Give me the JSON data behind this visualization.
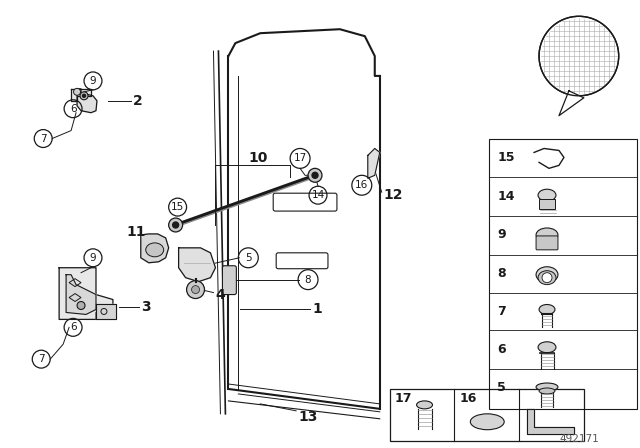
{
  "bg_color": "#ffffff",
  "fig_width": 6.4,
  "fig_height": 4.48,
  "dpi": 100,
  "part_number": "492171",
  "line_color": "#1a1a1a"
}
